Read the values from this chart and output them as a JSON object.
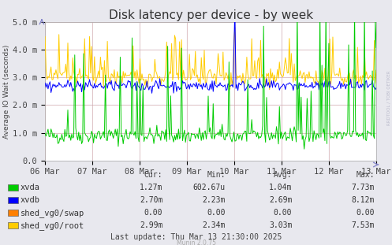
{
  "title": "Disk latency per device - by week",
  "ylabel": "Average IO Wait (seconds)",
  "background_color": "#e8e8ee",
  "plot_bg_color": "#ffffff",
  "border_color": "#aaaaaa",
  "ylim": [
    0.0,
    5000.0
  ],
  "ytick_vals": [
    0,
    1000,
    2000,
    3000,
    4000,
    5000
  ],
  "ytick_labels": [
    "0.0",
    "1.0 m",
    "2.0 m",
    "3.0 m",
    "4.0 m",
    "5.0 m"
  ],
  "xticklabels": [
    "06 Mar",
    "07 Mar",
    "08 Mar",
    "09 Mar",
    "10 Mar",
    "11 Mar",
    "12 Mar",
    "13 Mar"
  ],
  "series_colors": [
    "#00cc00",
    "#0000ff",
    "#ff7f00",
    "#ffcc00"
  ],
  "legend_labels": [
    "xvda",
    "xvdb",
    "shed_vg0/swap",
    "shed_vg0/root"
  ],
  "legend_colors": [
    "#00cc00",
    "#0000ff",
    "#ff7f00",
    "#ffcc00"
  ],
  "stats_cur": [
    "1.27m",
    "2.70m",
    "0.00",
    "2.99m"
  ],
  "stats_min": [
    "602.67u",
    "2.23m",
    "0.00",
    "2.34m"
  ],
  "stats_avg": [
    "1.04m",
    "2.69m",
    "0.00",
    "3.03m"
  ],
  "stats_max": [
    "7.73m",
    "8.12m",
    "0.00",
    "7.53m"
  ],
  "last_update": "Last update: Thu Mar 13 21:30:00 2025",
  "munin_version": "Munin 2.0.75",
  "rrdtool_label": "RRDTOOL / TOBI OETIKER",
  "title_fontsize": 11,
  "axis_fontsize": 7.5,
  "legend_fontsize": 7.5,
  "stats_fontsize": 7.0,
  "linewidth": 0.7
}
